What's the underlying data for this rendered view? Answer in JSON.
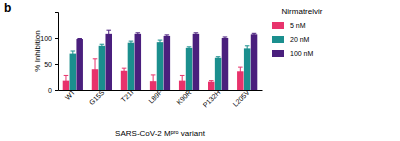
{
  "chart_data": {
    "type": "bar",
    "panel_label": "b",
    "y_label": "% Inhibition",
    "x_label": "SARS-CoV-2 Mᵖʳᵒ variant",
    "legend_title": "Nirmatrelvir",
    "legend": "right",
    "categories": [
      "WT",
      "G15S",
      "T21I",
      "L89F",
      "K90R",
      "P132H",
      "L205V"
    ],
    "series": [
      {
        "name": "5 nM",
        "color": "#e8336c",
        "values": [
          18,
          40,
          37,
          17,
          18,
          16,
          36
        ],
        "errors": [
          10,
          20,
          5,
          12,
          10,
          2,
          8
        ]
      },
      {
        "name": "20 nM",
        "color": "#1b8f8e",
        "values": [
          70,
          85,
          91,
          92,
          81,
          62,
          80
        ],
        "errors": [
          5,
          3,
          3,
          4,
          2,
          2,
          5
        ]
      },
      {
        "name": "100 nM",
        "color": "#4a1f7d",
        "values": [
          98,
          108,
          108,
          104,
          108,
          100,
          107
        ],
        "errors": [
          1,
          7,
          2,
          2,
          2,
          2,
          2
        ]
      }
    ],
    "ylim": [
      0,
      150
    ],
    "yticks": [
      0,
      50,
      100
    ]
  }
}
